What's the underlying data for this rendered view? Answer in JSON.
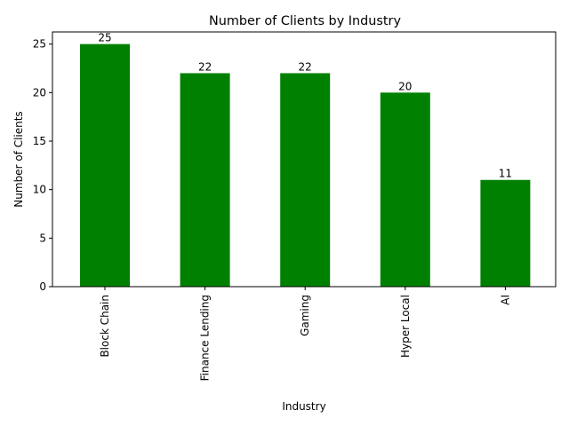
{
  "chart_data": {
    "type": "bar",
    "title": "Number of Clients by Industry",
    "xlabel": "Industry",
    "ylabel": "Number of Clients",
    "categories": [
      "Block Chain",
      "Finance Lending",
      "Gaming",
      "Hyper Local",
      "AI"
    ],
    "values": [
      25,
      22,
      22,
      20,
      11
    ],
    "data_labels": [
      "25",
      "22",
      "22",
      "20",
      "11"
    ],
    "ylim": [
      0,
      26.25
    ],
    "yticks": [
      0,
      5,
      10,
      15,
      20,
      25
    ],
    "ytick_labels": [
      "0",
      "5",
      "10",
      "15",
      "20",
      "25"
    ],
    "bar_color": "#008000",
    "grid": false,
    "legend": "none"
  }
}
